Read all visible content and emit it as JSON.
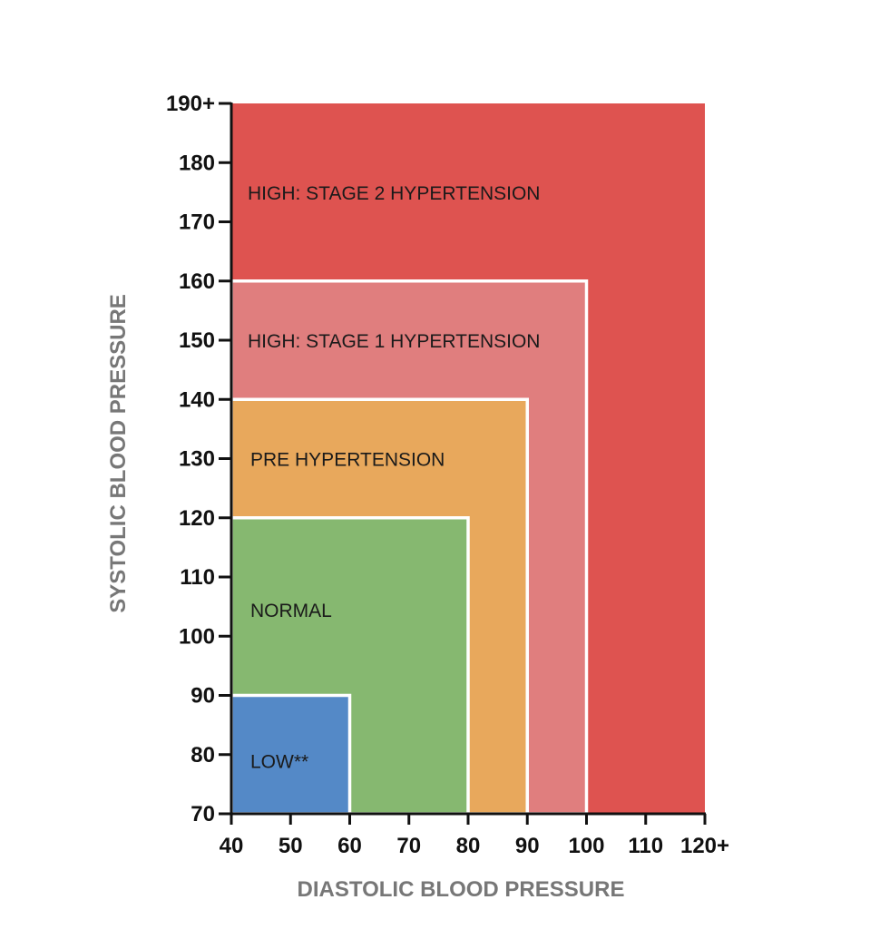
{
  "chart_data": {
    "type": "heatmap",
    "xlabel": "DIASTOLIC BLOOD PRESSURE",
    "ylabel": "SYSTOLIC BLOOD PRESSURE",
    "xlim": [
      40,
      120
    ],
    "ylim": [
      70,
      190
    ],
    "xticks": [
      {
        "value": 40,
        "label": "40"
      },
      {
        "value": 50,
        "label": "50"
      },
      {
        "value": 60,
        "label": "60"
      },
      {
        "value": 70,
        "label": "70"
      },
      {
        "value": 80,
        "label": "80"
      },
      {
        "value": 90,
        "label": "90"
      },
      {
        "value": 100,
        "label": "100"
      },
      {
        "value": 110,
        "label": "110"
      },
      {
        "value": 120,
        "label": "120+"
      }
    ],
    "yticks": [
      {
        "value": 70,
        "label": "70"
      },
      {
        "value": 80,
        "label": "80"
      },
      {
        "value": 90,
        "label": "90"
      },
      {
        "value": 100,
        "label": "100"
      },
      {
        "value": 110,
        "label": "110"
      },
      {
        "value": 120,
        "label": "120"
      },
      {
        "value": 130,
        "label": "130"
      },
      {
        "value": 140,
        "label": "140"
      },
      {
        "value": 150,
        "label": "150"
      },
      {
        "value": 160,
        "label": "160"
      },
      {
        "value": 170,
        "label": "170"
      },
      {
        "value": 180,
        "label": "180"
      },
      {
        "value": 190,
        "label": "190+"
      }
    ],
    "zones": [
      {
        "label": "HIGH: STAGE 2 HYPERTENSION",
        "diastolic_max": 120,
        "systolic_max": 190,
        "label_systolic": 175,
        "color": "#de5350"
      },
      {
        "label": "HIGH: STAGE 1 HYPERTENSION",
        "diastolic_max": 100,
        "systolic_max": 160,
        "label_systolic": 150,
        "color": "#e07e7e"
      },
      {
        "label": "PRE HYPERTENSION",
        "diastolic_max": 90,
        "systolic_max": 140,
        "label_systolic": 130,
        "color": "#e8a85c"
      },
      {
        "label": "NORMAL",
        "diastolic_max": 80,
        "systolic_max": 120,
        "label_systolic": 104.5,
        "color": "#86b870"
      },
      {
        "label": "LOW**",
        "diastolic_max": 60,
        "systolic_max": 90,
        "label_systolic": 79,
        "color": "#5489c7"
      }
    ]
  }
}
